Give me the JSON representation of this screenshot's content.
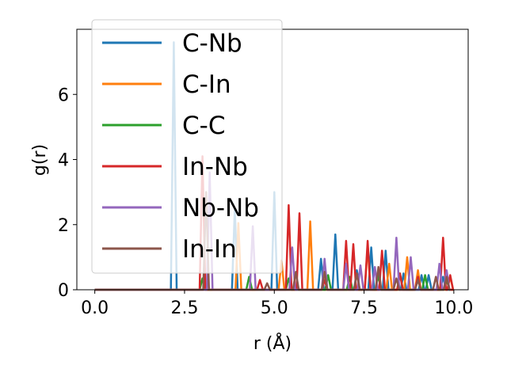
{
  "chart_data": {
    "type": "line",
    "title": "",
    "xlabel": "r (Å)",
    "ylabel": "g(r)",
    "xlim": [
      -0.5,
      10.4
    ],
    "ylim": [
      0,
      8.0
    ],
    "xticks": [
      0.0,
      2.5,
      5.0,
      7.5,
      10.0
    ],
    "xtick_labels": [
      "0.0",
      "2.5",
      "5.0",
      "7.5",
      "10.0"
    ],
    "yticks": [
      0,
      2,
      4,
      6
    ],
    "ytick_labels": [
      "0",
      "2",
      "4",
      "6"
    ],
    "grid": false,
    "legend_position": "upper left",
    "series": [
      {
        "name": "C-Nb",
        "color": "#1f77b4",
        "peaks": [
          [
            2.2,
            7.6
          ],
          [
            3.9,
            2.5
          ],
          [
            5.0,
            3.0
          ],
          [
            6.3,
            0.95
          ],
          [
            6.7,
            1.7
          ],
          [
            7.3,
            0.6
          ],
          [
            7.7,
            1.3
          ],
          [
            8.1,
            1.2
          ],
          [
            8.6,
            0.5
          ],
          [
            9.1,
            0.45
          ],
          [
            9.3,
            0.45
          ],
          [
            9.7,
            0.4
          ]
        ]
      },
      {
        "name": "C-In",
        "color": "#ff7f0e",
        "peaks": [
          [
            4.0,
            2.05
          ],
          [
            5.2,
            0.9
          ],
          [
            6.0,
            2.1
          ],
          [
            7.6,
            1.35
          ],
          [
            8.2,
            0.8
          ],
          [
            8.7,
            1.0
          ],
          [
            9.0,
            0.6
          ],
          [
            9.9,
            0.4
          ]
        ]
      },
      {
        "name": "C-C",
        "color": "#2ca02c",
        "peaks": [
          [
            3.0,
            0.35
          ],
          [
            4.3,
            0.4
          ],
          [
            5.4,
            0.35
          ],
          [
            6.5,
            0.45
          ],
          [
            7.1,
            0.4
          ],
          [
            7.9,
            0.45
          ],
          [
            8.5,
            0.5
          ],
          [
            9.2,
            0.45
          ],
          [
            9.8,
            0.3
          ]
        ]
      },
      {
        "name": "In-Nb",
        "color": "#d62728",
        "peaks": [
          [
            3.0,
            4.1
          ],
          [
            4.6,
            0.3
          ],
          [
            5.4,
            2.6
          ],
          [
            5.7,
            2.35
          ],
          [
            6.4,
            0.3
          ],
          [
            7.0,
            1.5
          ],
          [
            7.2,
            1.4
          ],
          [
            7.6,
            1.5
          ],
          [
            8.0,
            1.2
          ],
          [
            8.5,
            0.5
          ],
          [
            9.0,
            0.4
          ],
          [
            9.7,
            1.6
          ],
          [
            9.9,
            0.45
          ]
        ]
      },
      {
        "name": "Nb-Nb",
        "color": "#9467bd",
        "peaks": [
          [
            3.2,
            3.6
          ],
          [
            4.4,
            1.95
          ],
          [
            5.5,
            1.3
          ],
          [
            6.4,
            0.95
          ],
          [
            7.0,
            0.8
          ],
          [
            7.4,
            0.75
          ],
          [
            7.8,
            0.7
          ],
          [
            8.4,
            1.6
          ],
          [
            8.8,
            1.0
          ],
          [
            9.6,
            0.8
          ],
          [
            9.8,
            0.6
          ]
        ]
      },
      {
        "name": "In-In",
        "color": "#8c564b",
        "peaks": [
          [
            3.1,
            3.0
          ],
          [
            4.8,
            0.2
          ],
          [
            5.6,
            0.55
          ],
          [
            6.4,
            0.55
          ],
          [
            7.3,
            0.5
          ],
          [
            7.9,
            0.7
          ],
          [
            8.4,
            0.35
          ],
          [
            9.0,
            0.3
          ],
          [
            9.5,
            0.4
          ],
          [
            9.8,
            0.4
          ]
        ]
      }
    ]
  }
}
